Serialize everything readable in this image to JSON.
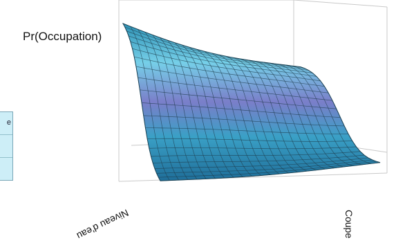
{
  "chart_data": {
    "type": "surface",
    "title": "",
    "zlabel": "Pr(Occupation)",
    "xlabel": "Niveau d'eau",
    "ylabel": "Coupe",
    "grid": true,
    "colors": {
      "high": "#2a8fb0",
      "mid": "#7fd3ea",
      "purple": "#7a7dc8",
      "mesh": "#1e3a4a",
      "frame": "#c9c9c9"
    }
  },
  "legend_fragment": {
    "cells": [
      "e",
      "",
      ""
    ]
  }
}
